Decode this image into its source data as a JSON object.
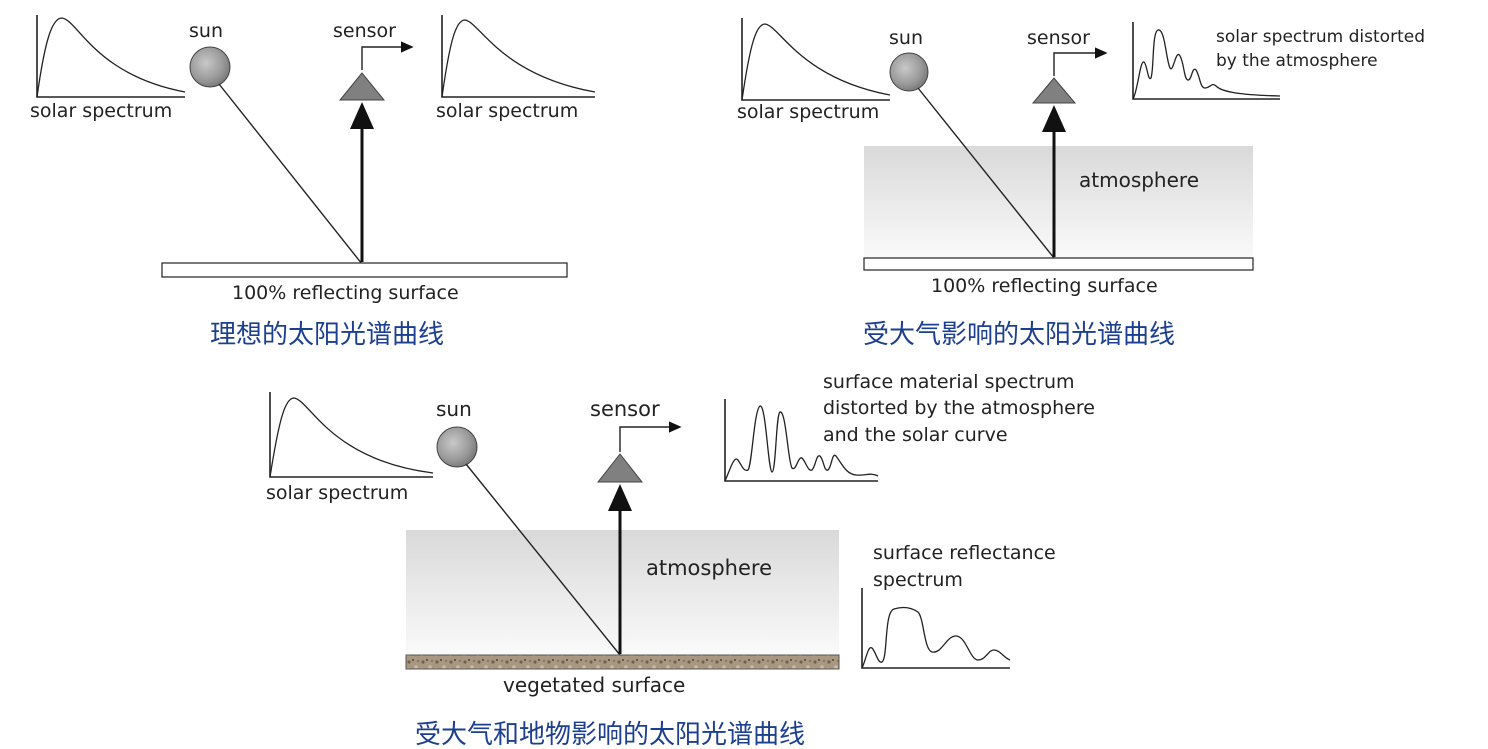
{
  "colors": {
    "caption": "#1d3f8f",
    "sensor": "#808080",
    "sun": "#9a9a9a",
    "atmosphere_top": "#d9d9d9",
    "soil": "#8a7d6c"
  },
  "panel_a": {
    "sun_label": "sun",
    "sensor_label": "sensor",
    "input_spectrum_label": "solar spectrum",
    "output_spectrum_label": "solar spectrum",
    "surface_label": "100% reflecting surface",
    "caption": "理想的太阳光谱曲线"
  },
  "panel_b": {
    "sun_label": "sun",
    "sensor_label": "sensor",
    "input_spectrum_label": "solar spectrum",
    "output_spectrum_label_line1": "solar spectrum distorted",
    "output_spectrum_label_line2": "by the atmosphere",
    "atmosphere_label": "atmosphere",
    "surface_label": "100% reflecting surface",
    "caption": "受大气影响的太阳光谱曲线"
  },
  "panel_c": {
    "sun_label": "sun",
    "sensor_label": "sensor",
    "input_spectrum_label": "solar spectrum",
    "output_spectrum_label_line1": "surface material spectrum",
    "output_spectrum_label_line2": "distorted by the atmosphere",
    "output_spectrum_label_line3": "and the solar curve",
    "atmosphere_label": "atmosphere",
    "reflectance_label_line1": "surface reflectance",
    "reflectance_label_line2": "spectrum",
    "surface_label": "vegetated surface",
    "caption": "受大气和地物影响的太阳光谱曲线"
  }
}
